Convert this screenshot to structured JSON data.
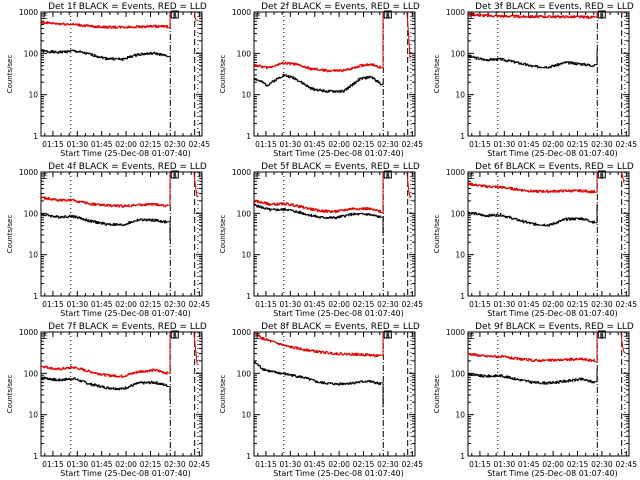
{
  "chart_data": [
    {
      "type": "line",
      "title": "Det 1f BLACK = Events, RED = LLD",
      "xlabel": "Start Time (25-Dec-08 01:07:40)",
      "ylabel": "Counts/sec",
      "yscale": "log",
      "ylim": [
        1,
        1000
      ],
      "ytick_labels": [
        "1",
        "10",
        "100",
        "1000"
      ],
      "xlim_minutes": [
        0,
        99
      ],
      "xtick_labels": [
        "01:15",
        "01:30",
        "01:45",
        "02:00",
        "02:15",
        "02:30",
        "02:45"
      ],
      "vlines_minutes": {
        "dotted": [
          18.3,
          96.5
        ],
        "dashdot": [
          79.5
        ],
        "dashed": [
          94.5
        ]
      },
      "x_minutes": [
        0,
        10,
        20,
        30,
        40,
        50,
        60,
        70,
        78,
        79.3
      ],
      "series": [
        {
          "name": "Events",
          "color": "#000000",
          "values": [
            115,
            105,
            115,
            95,
            75,
            72,
            95,
            100,
            85,
            90
          ]
        },
        {
          "name": "LLD",
          "color": "#e00000",
          "values": [
            560,
            520,
            500,
            450,
            430,
            430,
            440,
            450,
            440,
            1000
          ]
        }
      ],
      "lld_tail": {
        "x_minutes": [
          94.5,
          95.5
        ],
        "values": [
          800,
          600
        ]
      }
    },
    {
      "type": "line",
      "title": "Det 2f BLACK = Events, RED = LLD",
      "xlabel": "Start Time (25-Dec-08 01:07:40)",
      "ylabel": "Counts/sec",
      "yscale": "log",
      "ylim": [
        1,
        1000
      ],
      "ytick_labels": [
        "1",
        "10",
        "100",
        "1000"
      ],
      "xlim_minutes": [
        0,
        99
      ],
      "xtick_labels": [
        "01:15",
        "01:30",
        "01:45",
        "02:00",
        "02:15",
        "02:30",
        "02:45"
      ],
      "vlines_minutes": {
        "dotted": [
          18.3,
          96.5
        ],
        "dashdot": [
          79.5
        ],
        "dashed": [
          94.5
        ]
      },
      "x_minutes": [
        0,
        8,
        18,
        25,
        35,
        45,
        55,
        65,
        72,
        78,
        79.3
      ],
      "series": [
        {
          "name": "Events",
          "color": "#000000",
          "values": [
            25,
            17,
            30,
            25,
            14,
            12,
            12,
            24,
            27,
            18,
            20
          ]
        },
        {
          "name": "LLD",
          "color": "#e00000",
          "values": [
            52,
            45,
            58,
            55,
            42,
            38,
            38,
            50,
            55,
            45,
            1000
          ]
        }
      ],
      "lld_tail": {
        "x_minutes": [
          94.0,
          95.0,
          96.0
        ],
        "values": [
          1000,
          300,
          75
        ]
      }
    },
    {
      "type": "line",
      "title": "Det 3f BLACK = Events, RED = LLD",
      "xlabel": "Start Time (25-Dec-08 01:07:40)",
      "ylabel": "Counts/sec",
      "yscale": "log",
      "ylim": [
        1,
        1000
      ],
      "ytick_labels": [
        "1",
        "10",
        "100",
        "1000"
      ],
      "xlim_minutes": [
        0,
        99
      ],
      "xtick_labels": [
        "01:15",
        "01:30",
        "01:45",
        "02:00",
        "02:15",
        "02:30",
        "02:45"
      ],
      "vlines_minutes": {
        "dotted": [
          18.3,
          96.5
        ],
        "dashdot": [
          79.5
        ],
        "dashed": [
          94.5
        ]
      },
      "x_minutes": [
        0,
        10,
        20,
        30,
        40,
        50,
        60,
        70,
        78,
        79.3
      ],
      "series": [
        {
          "name": "Events",
          "color": "#000000",
          "values": [
            85,
            70,
            72,
            60,
            48,
            47,
            60,
            55,
            50,
            120
          ]
        },
        {
          "name": "LLD",
          "color": "#e00000",
          "values": [
            900,
            820,
            800,
            780,
            770,
            770,
            770,
            760,
            740,
            1000
          ]
        }
      ],
      "lld_tail": {
        "x_minutes": [
          94.5,
          95.0
        ],
        "values": [
          1000,
          900
        ]
      }
    },
    {
      "type": "line",
      "title": "Det 4f BLACK = Events, RED = LLD",
      "xlabel": "Start Time (25-Dec-08 01:07:40)",
      "ylabel": "Counts/sec",
      "yscale": "log",
      "ylim": [
        1,
        1000
      ],
      "ytick_labels": [
        "1",
        "10",
        "100",
        "1000"
      ],
      "xlim_minutes": [
        0,
        99
      ],
      "xtick_labels": [
        "01:15",
        "01:30",
        "01:45",
        "02:00",
        "02:15",
        "02:30",
        "02:45"
      ],
      "vlines_minutes": {
        "dotted": [
          18.3,
          96.5
        ],
        "dashdot": [
          79.5
        ],
        "dashed": [
          94.5
        ]
      },
      "x_minutes": [
        0,
        10,
        20,
        30,
        40,
        50,
        60,
        70,
        78,
        79.3
      ],
      "series": [
        {
          "name": "Events",
          "color": "#000000",
          "values": [
            95,
            82,
            85,
            65,
            55,
            52,
            70,
            68,
            60,
            22
          ]
        },
        {
          "name": "LLD",
          "color": "#e00000",
          "values": [
            240,
            210,
            205,
            170,
            155,
            150,
            160,
            165,
            150,
            1000
          ]
        }
      ],
      "lld_tail": {
        "x_minutes": [
          94.0,
          95.0,
          96.0
        ],
        "values": [
          1000,
          450,
          250
        ]
      }
    },
    {
      "type": "line",
      "title": "Det 5f BLACK = Events, RED = LLD",
      "xlabel": "Start Time (25-Dec-08 01:07:40)",
      "ylabel": "Counts/sec",
      "yscale": "log",
      "ylim": [
        1,
        1000
      ],
      "ytick_labels": [
        "1",
        "10",
        "100",
        "1000"
      ],
      "xlim_minutes": [
        0,
        99
      ],
      "xtick_labels": [
        "01:15",
        "01:30",
        "01:45",
        "02:00",
        "02:15",
        "02:30",
        "02:45"
      ],
      "vlines_minutes": {
        "dotted": [
          18.3,
          96.5
        ],
        "dashdot": [
          79.5
        ],
        "dashed": [
          94.5
        ]
      },
      "x_minutes": [
        0,
        10,
        20,
        30,
        40,
        50,
        60,
        70,
        78,
        79.3
      ],
      "series": [
        {
          "name": "Events",
          "color": "#000000",
          "values": [
            160,
            120,
            125,
            100,
            80,
            78,
            95,
            95,
            80,
            30
          ]
        },
        {
          "name": "LLD",
          "color": "#e00000",
          "values": [
            200,
            165,
            170,
            140,
            115,
            110,
            130,
            130,
            110,
            1000
          ]
        }
      ],
      "lld_tail": {
        "x_minutes": [
          94.0,
          95.0,
          96.0
        ],
        "values": [
          1000,
          400,
          230
        ]
      }
    },
    {
      "type": "line",
      "title": "Det 6f BLACK = Events, RED = LLD",
      "xlabel": "Start Time (25-Dec-08 01:07:40)",
      "ylabel": "Counts/sec",
      "yscale": "log",
      "ylim": [
        1,
        1000
      ],
      "ytick_labels": [
        "1",
        "10",
        "100",
        "1000"
      ],
      "xlim_minutes": [
        0,
        99
      ],
      "xtick_labels": [
        "01:15",
        "01:30",
        "01:45",
        "02:00",
        "02:15",
        "02:30",
        "02:45"
      ],
      "vlines_minutes": {
        "dotted": [
          18.3,
          96.5
        ],
        "dashdot": [
          79.5
        ],
        "dashed": [
          94.5
        ]
      },
      "x_minutes": [
        0,
        10,
        20,
        30,
        40,
        50,
        60,
        70,
        78,
        79.3
      ],
      "series": [
        {
          "name": "Events",
          "color": "#000000",
          "values": [
            105,
            88,
            92,
            70,
            55,
            52,
            72,
            75,
            60,
            170
          ]
        },
        {
          "name": "LLD",
          "color": "#e00000",
          "values": [
            520,
            450,
            430,
            380,
            340,
            340,
            350,
            350,
            330,
            1000
          ]
        }
      ],
      "lld_tail": {
        "x_minutes": [
          94.5,
          95.5,
          96.0
        ],
        "values": [
          1000,
          650,
          550
        ]
      }
    },
    {
      "type": "line",
      "title": "Det 7f BLACK = Events, RED = LLD",
      "xlabel": "Start Time (25-Dec-08 01:07:40)",
      "ylabel": "Counts/sec",
      "yscale": "log",
      "ylim": [
        1,
        1000
      ],
      "ytick_labels": [
        "1",
        "10",
        "100",
        "1000"
      ],
      "xlim_minutes": [
        0,
        99
      ],
      "xtick_labels": [
        "01:15",
        "01:30",
        "01:45",
        "02:00",
        "02:15",
        "02:30",
        "02:45"
      ],
      "vlines_minutes": {
        "dotted": [
          18.3,
          96.5
        ],
        "dashdot": [
          79.5
        ],
        "dashed": [
          94.5
        ]
      },
      "x_minutes": [
        0,
        10,
        20,
        30,
        40,
        50,
        60,
        70,
        78,
        79.3
      ],
      "series": [
        {
          "name": "Events",
          "color": "#000000",
          "values": [
            80,
            68,
            75,
            55,
            45,
            42,
            58,
            60,
            50,
            22
          ]
        },
        {
          "name": "LLD",
          "color": "#e00000",
          "values": [
            150,
            125,
            140,
            110,
            90,
            85,
            110,
            120,
            100,
            1000
          ]
        }
      ],
      "lld_tail": {
        "x_minutes": [
          94.0,
          95.0,
          96.0
        ],
        "values": [
          1000,
          400,
          170
        ]
      }
    },
    {
      "type": "line",
      "title": "Det 8f BLACK = Events, RED = LLD",
      "xlabel": "Start Time (25-Dec-08 01:07:40)",
      "ylabel": "Counts/sec",
      "yscale": "log",
      "ylim": [
        1,
        1000
      ],
      "ytick_labels": [
        "1",
        "10",
        "100",
        "1000"
      ],
      "xlim_minutes": [
        0,
        99
      ],
      "xtick_labels": [
        "01:15",
        "01:30",
        "01:45",
        "02:00",
        "02:15",
        "02:30",
        "02:45"
      ],
      "vlines_minutes": {
        "dotted": [
          18.3,
          96.5
        ],
        "dashdot": [
          79.5
        ],
        "dashed": [
          94.5
        ]
      },
      "x_minutes": [
        0,
        5,
        10,
        20,
        30,
        40,
        50,
        60,
        70,
        78,
        79.3
      ],
      "series": [
        {
          "name": "Events",
          "color": "#000000",
          "values": [
            190,
            130,
            110,
            95,
            80,
            60,
            55,
            58,
            65,
            55,
            15
          ]
        },
        {
          "name": "LLD",
          "color": "#e00000",
          "values": [
            950,
            700,
            600,
            450,
            380,
            330,
            300,
            290,
            280,
            260,
            1000
          ]
        }
      ],
      "lld_tail": {
        "x_minutes": [
          95.0
        ],
        "values": [
          1000
        ]
      }
    },
    {
      "type": "line",
      "title": "Det 9f BLACK = Events, RED = LLD",
      "xlabel": "Start Time (25-Dec-08 01:07:40)",
      "ylabel": "Counts/sec",
      "yscale": "log",
      "ylim": [
        1,
        1000
      ],
      "ytick_labels": [
        "1",
        "10",
        "100",
        "1000"
      ],
      "xlim_minutes": [
        0,
        99
      ],
      "xtick_labels": [
        "01:15",
        "01:30",
        "01:45",
        "02:00",
        "02:15",
        "02:30",
        "02:45"
      ],
      "vlines_minutes": {
        "dotted": [
          18.3,
          96.5
        ],
        "dashdot": [
          79.5
        ],
        "dashed": [
          94.5
        ]
      },
      "x_minutes": [
        0,
        10,
        20,
        30,
        40,
        50,
        60,
        70,
        78,
        79.3
      ],
      "series": [
        {
          "name": "Events",
          "color": "#000000",
          "values": [
            95,
            85,
            88,
            72,
            60,
            58,
            65,
            72,
            60,
            130
          ]
        },
        {
          "name": "LLD",
          "color": "#e00000",
          "values": [
            300,
            260,
            255,
            225,
            205,
            205,
            215,
            220,
            200,
            1000
          ]
        }
      ],
      "lld_tail": {
        "x_minutes": [
          94.0,
          95.0,
          96.0
        ],
        "values": [
          1000,
          450,
          320
        ]
      }
    }
  ]
}
